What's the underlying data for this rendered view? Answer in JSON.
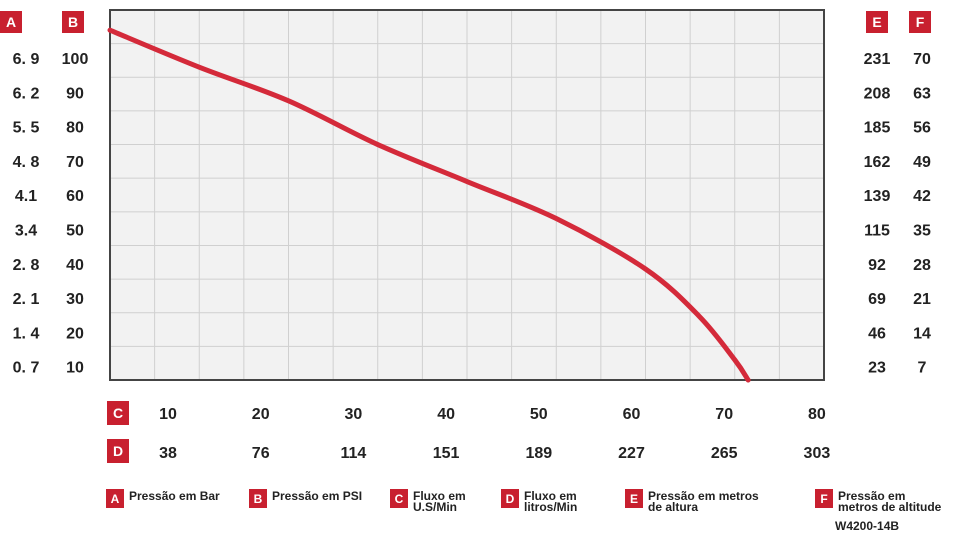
{
  "axis_badges": {
    "A": "A",
    "B": "B",
    "C": "C",
    "D": "D",
    "E": "E",
    "F": "F"
  },
  "chart_data": {
    "type": "line",
    "title": "",
    "xlabel": "Fluxo em U.S/Min",
    "ylabel": "Pressão em PSI",
    "xlim": [
      0,
      80
    ],
    "ylim": [
      0,
      110
    ],
    "grid": true,
    "series": [
      {
        "name": "",
        "color": "#d42a3a",
        "x": [
          0,
          10,
          20,
          30,
          40,
          50,
          60,
          66,
          70,
          71.5
        ],
        "y": [
          104,
          93,
          83,
          70,
          59,
          48,
          33,
          19,
          6,
          0
        ]
      }
    ],
    "ticks": {
      "A": [
        "6. 9",
        "6. 2",
        "5. 5",
        "4. 8",
        "4.1",
        "3.4",
        "2. 8",
        "2. 1",
        "1. 4",
        "0. 7"
      ],
      "B": [
        "100",
        "90",
        "80",
        "70",
        "60",
        "50",
        "40",
        "30",
        "20",
        "10"
      ],
      "E": [
        "231",
        "208",
        "185",
        "162",
        "139",
        "115",
        "92",
        "69",
        "46",
        "23"
      ],
      "F": [
        "70",
        "63",
        "56",
        "49",
        "42",
        "35",
        "28",
        "21",
        "14",
        "7"
      ],
      "C": [
        "10",
        "20",
        "30",
        "40",
        "50",
        "60",
        "70",
        "80"
      ],
      "D": [
        "38",
        "76",
        "114",
        "151",
        "189",
        "227",
        "265",
        "303"
      ]
    }
  },
  "legend": [
    {
      "badge": "A",
      "text": "Pressão em Bar"
    },
    {
      "badge": "B",
      "text": "Pressão em PSI"
    },
    {
      "badge": "C",
      "text": "Fluxo em\nU.S/Min"
    },
    {
      "badge": "D",
      "text": "Fluxo em\nlitros/Min"
    },
    {
      "badge": "E",
      "text": "Pressão em metros\nde altura"
    },
    {
      "badge": "F",
      "text": "Pressão em\nmetros de altitude"
    }
  ],
  "footer_code": "W4200-14B",
  "colors": {
    "accent": "#c8202f",
    "grid": "#d0d0d0",
    "plot_bg": "#f2f2f2",
    "line": "#d42a3a"
  }
}
